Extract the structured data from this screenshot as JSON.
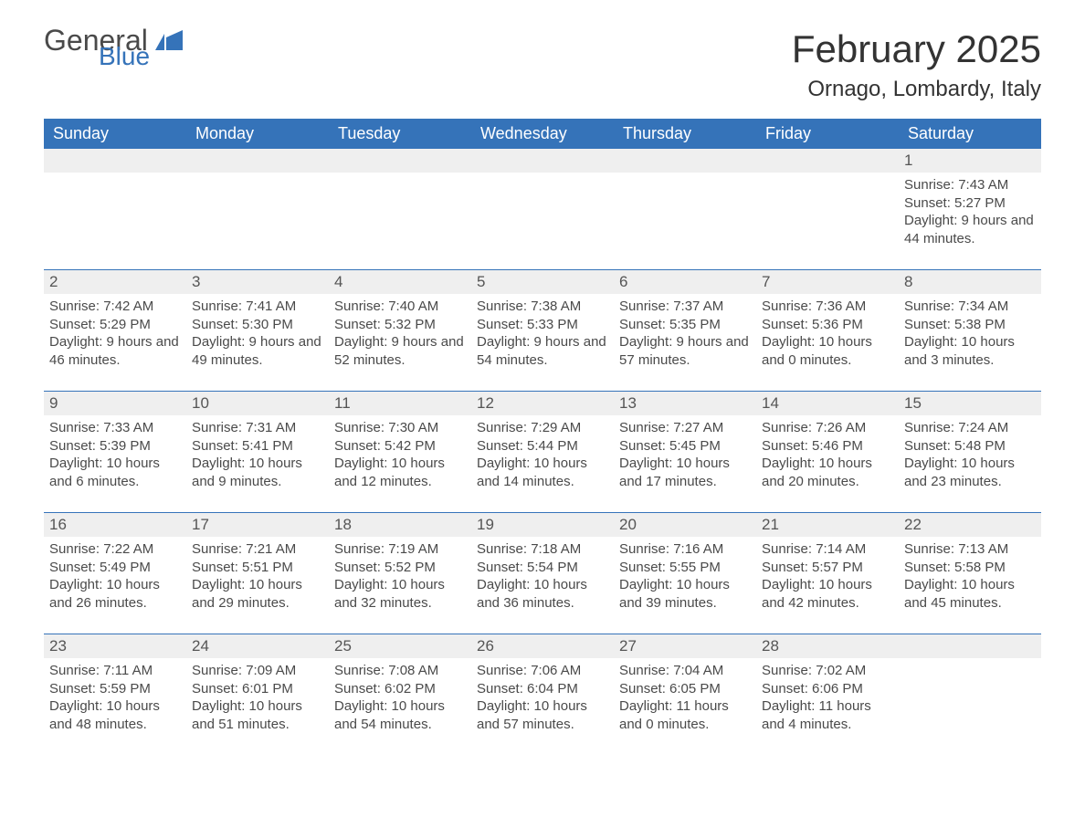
{
  "brand": {
    "word1": "General",
    "word2": "Blue"
  },
  "title": "February 2025",
  "location": "Ornago, Lombardy, Italy",
  "colors": {
    "header_bg": "#3573b9",
    "header_text": "#ffffff",
    "daynum_bg": "#efefef",
    "rule": "#3573b9",
    "body_text": "#4a4a4a",
    "page_bg": "#ffffff"
  },
  "typography": {
    "title_fontsize": 42,
    "location_fontsize": 24,
    "header_fontsize": 18,
    "cell_fontsize": 15,
    "daynum_fontsize": 17,
    "family": "Arial"
  },
  "layout": {
    "columns": 7,
    "weeks": 5,
    "first_day_column_index": 6
  },
  "weekdays": [
    "Sunday",
    "Monday",
    "Tuesday",
    "Wednesday",
    "Thursday",
    "Friday",
    "Saturday"
  ],
  "days": [
    {
      "n": 1,
      "sunrise": "7:43 AM",
      "sunset": "5:27 PM",
      "dl": "9 hours and 44 minutes."
    },
    {
      "n": 2,
      "sunrise": "7:42 AM",
      "sunset": "5:29 PM",
      "dl": "9 hours and 46 minutes."
    },
    {
      "n": 3,
      "sunrise": "7:41 AM",
      "sunset": "5:30 PM",
      "dl": "9 hours and 49 minutes."
    },
    {
      "n": 4,
      "sunrise": "7:40 AM",
      "sunset": "5:32 PM",
      "dl": "9 hours and 52 minutes."
    },
    {
      "n": 5,
      "sunrise": "7:38 AM",
      "sunset": "5:33 PM",
      "dl": "9 hours and 54 minutes."
    },
    {
      "n": 6,
      "sunrise": "7:37 AM",
      "sunset": "5:35 PM",
      "dl": "9 hours and 57 minutes."
    },
    {
      "n": 7,
      "sunrise": "7:36 AM",
      "sunset": "5:36 PM",
      "dl": "10 hours and 0 minutes."
    },
    {
      "n": 8,
      "sunrise": "7:34 AM",
      "sunset": "5:38 PM",
      "dl": "10 hours and 3 minutes."
    },
    {
      "n": 9,
      "sunrise": "7:33 AM",
      "sunset": "5:39 PM",
      "dl": "10 hours and 6 minutes."
    },
    {
      "n": 10,
      "sunrise": "7:31 AM",
      "sunset": "5:41 PM",
      "dl": "10 hours and 9 minutes."
    },
    {
      "n": 11,
      "sunrise": "7:30 AM",
      "sunset": "5:42 PM",
      "dl": "10 hours and 12 minutes."
    },
    {
      "n": 12,
      "sunrise": "7:29 AM",
      "sunset": "5:44 PM",
      "dl": "10 hours and 14 minutes."
    },
    {
      "n": 13,
      "sunrise": "7:27 AM",
      "sunset": "5:45 PM",
      "dl": "10 hours and 17 minutes."
    },
    {
      "n": 14,
      "sunrise": "7:26 AM",
      "sunset": "5:46 PM",
      "dl": "10 hours and 20 minutes."
    },
    {
      "n": 15,
      "sunrise": "7:24 AM",
      "sunset": "5:48 PM",
      "dl": "10 hours and 23 minutes."
    },
    {
      "n": 16,
      "sunrise": "7:22 AM",
      "sunset": "5:49 PM",
      "dl": "10 hours and 26 minutes."
    },
    {
      "n": 17,
      "sunrise": "7:21 AM",
      "sunset": "5:51 PM",
      "dl": "10 hours and 29 minutes."
    },
    {
      "n": 18,
      "sunrise": "7:19 AM",
      "sunset": "5:52 PM",
      "dl": "10 hours and 32 minutes."
    },
    {
      "n": 19,
      "sunrise": "7:18 AM",
      "sunset": "5:54 PM",
      "dl": "10 hours and 36 minutes."
    },
    {
      "n": 20,
      "sunrise": "7:16 AM",
      "sunset": "5:55 PM",
      "dl": "10 hours and 39 minutes."
    },
    {
      "n": 21,
      "sunrise": "7:14 AM",
      "sunset": "5:57 PM",
      "dl": "10 hours and 42 minutes."
    },
    {
      "n": 22,
      "sunrise": "7:13 AM",
      "sunset": "5:58 PM",
      "dl": "10 hours and 45 minutes."
    },
    {
      "n": 23,
      "sunrise": "7:11 AM",
      "sunset": "5:59 PM",
      "dl": "10 hours and 48 minutes."
    },
    {
      "n": 24,
      "sunrise": "7:09 AM",
      "sunset": "6:01 PM",
      "dl": "10 hours and 51 minutes."
    },
    {
      "n": 25,
      "sunrise": "7:08 AM",
      "sunset": "6:02 PM",
      "dl": "10 hours and 54 minutes."
    },
    {
      "n": 26,
      "sunrise": "7:06 AM",
      "sunset": "6:04 PM",
      "dl": "10 hours and 57 minutes."
    },
    {
      "n": 27,
      "sunrise": "7:04 AM",
      "sunset": "6:05 PM",
      "dl": "11 hours and 0 minutes."
    },
    {
      "n": 28,
      "sunrise": "7:02 AM",
      "sunset": "6:06 PM",
      "dl": "11 hours and 4 minutes."
    }
  ],
  "labels": {
    "sunrise": "Sunrise:",
    "sunset": "Sunset:",
    "daylight": "Daylight:"
  }
}
